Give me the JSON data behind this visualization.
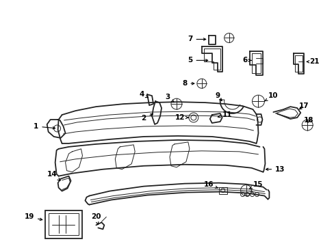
{
  "bg_color": "#ffffff",
  "line_color": "#222222",
  "label_color": "#000000",
  "label_fs": 7.5,
  "lw_main": 1.3,
  "lw_thin": 0.7
}
